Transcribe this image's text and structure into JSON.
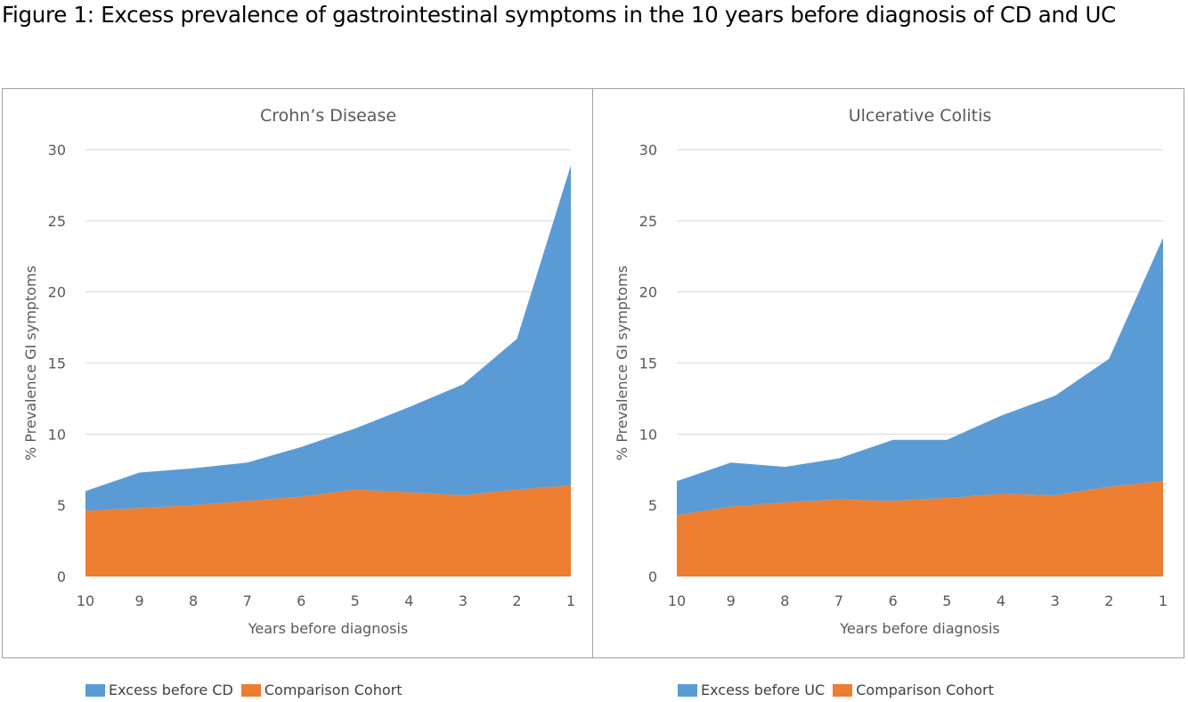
{
  "figure_title": "Figure 1: Excess prevalence of gastrointestinal symptoms in the 10 years before diagnosis of CD and UC",
  "colors": {
    "excess": "#5b9bd5",
    "comparison": "#ed7d31",
    "grid": "#d9d9d9",
    "text": "#595959"
  },
  "chart_data": [
    {
      "type": "area",
      "stacked": true,
      "title": "Crohn’s Disease",
      "xlabel": "Years before diagnosis",
      "ylabel": "% Prevalence GI symptoms",
      "x": [
        10,
        9,
        8,
        7,
        6,
        5,
        4,
        3,
        2,
        1
      ],
      "ylim": [
        0,
        30
      ],
      "yticks": [
        0,
        5,
        10,
        15,
        20,
        25,
        30
      ],
      "grid": true,
      "series": [
        {
          "name": "Comparison Cohort",
          "values": [
            4.6,
            4.8,
            5.0,
            5.3,
            5.6,
            6.1,
            5.9,
            5.7,
            6.1,
            6.4
          ]
        },
        {
          "name": "Excess before CD",
          "values": [
            1.4,
            2.5,
            2.6,
            2.7,
            3.5,
            4.3,
            6.0,
            7.8,
            10.6,
            22.5
          ]
        }
      ],
      "legend": "bottom"
    },
    {
      "type": "area",
      "stacked": true,
      "title": "Ulcerative Colitis",
      "xlabel": "Years before diagnosis",
      "ylabel": "% Prevalence GI symptoms",
      "x": [
        10,
        9,
        8,
        7,
        6,
        5,
        4,
        3,
        2,
        1
      ],
      "ylim": [
        0,
        30
      ],
      "yticks": [
        0,
        5,
        10,
        15,
        20,
        25,
        30
      ],
      "grid": true,
      "series": [
        {
          "name": "Comparison Cohort",
          "values": [
            4.3,
            4.9,
            5.2,
            5.4,
            5.3,
            5.5,
            5.8,
            5.7,
            6.3,
            6.7
          ]
        },
        {
          "name": "Excess before UC",
          "values": [
            2.4,
            3.1,
            2.5,
            2.9,
            4.3,
            4.1,
            5.5,
            7.0,
            9.0,
            17.1
          ]
        }
      ],
      "legend": "bottom"
    }
  ]
}
